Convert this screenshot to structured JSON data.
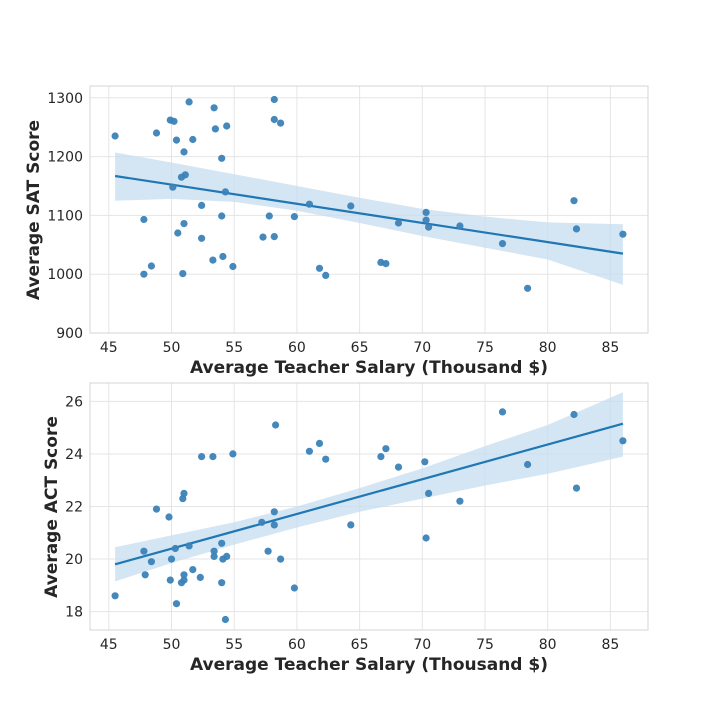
{
  "chart_data": [
    {
      "type": "scatter",
      "title": "",
      "xlabel": "Average Teacher Salary (Thousand $)",
      "ylabel": "Average SAT Score",
      "xlim": [
        43.5,
        88
      ],
      "ylim": [
        900,
        1320
      ],
      "xticks": [
        45,
        50,
        55,
        60,
        65,
        70,
        75,
        80,
        85
      ],
      "yticks": [
        900,
        1000,
        1100,
        1200,
        1300
      ],
      "grid": true,
      "regression": true,
      "colors": {
        "points": "#3b82b8",
        "line": "#1f77b4",
        "ci": "#c6dcef"
      },
      "points": [
        [
          45.5,
          1235
        ],
        [
          47.8,
          1093
        ],
        [
          47.8,
          1000
        ],
        [
          48.4,
          1014
        ],
        [
          48.8,
          1240
        ],
        [
          49.9,
          1262
        ],
        [
          50.1,
          1148
        ],
        [
          50.2,
          1260
        ],
        [
          50.4,
          1228
        ],
        [
          50.5,
          1070
        ],
        [
          50.8,
          1165
        ],
        [
          50.9,
          1001
        ],
        [
          51.0,
          1208
        ],
        [
          51.0,
          1086
        ],
        [
          51.1,
          1169
        ],
        [
          51.4,
          1293
        ],
        [
          51.7,
          1229
        ],
        [
          52.4,
          1117
        ],
        [
          52.4,
          1061
        ],
        [
          53.3,
          1024
        ],
        [
          53.4,
          1283
        ],
        [
          53.5,
          1247
        ],
        [
          54.0,
          1099
        ],
        [
          54.0,
          1197
        ],
        [
          54.1,
          1030
        ],
        [
          54.3,
          1140
        ],
        [
          54.4,
          1252
        ],
        [
          54.9,
          1013
        ],
        [
          57.3,
          1063
        ],
        [
          57.8,
          1099
        ],
        [
          58.2,
          1064
        ],
        [
          58.2,
          1297
        ],
        [
          58.2,
          1263
        ],
        [
          58.7,
          1257
        ],
        [
          59.8,
          1098
        ],
        [
          61.0,
          1119
        ],
        [
          61.8,
          1010
        ],
        [
          62.3,
          998
        ],
        [
          64.3,
          1116
        ],
        [
          66.7,
          1020
        ],
        [
          67.1,
          1018
        ],
        [
          68.1,
          1087
        ],
        [
          70.3,
          1092
        ],
        [
          70.3,
          1105
        ],
        [
          70.5,
          1080
        ],
        [
          73.0,
          1082
        ],
        [
          76.4,
          1052
        ],
        [
          78.4,
          976
        ],
        [
          82.1,
          1125
        ],
        [
          82.3,
          1077
        ],
        [
          86.0,
          1068
        ]
      ],
      "fit": {
        "x": [
          45.5,
          86.0
        ],
        "y": [
          1167,
          1035
        ]
      },
      "ci_band": {
        "x": [
          45.5,
          50,
          55,
          60,
          65,
          70,
          75,
          80,
          86.0
        ],
        "lower": [
          1125,
          1128,
          1123,
          1108,
          1087,
          1065,
          1045,
          1025,
          982
        ],
        "upper": [
          1207,
          1190,
          1170,
          1150,
          1130,
          1111,
          1098,
          1088,
          1085
        ]
      }
    },
    {
      "type": "scatter",
      "title": "",
      "xlabel": "Average Teacher Salary (Thousand $)",
      "ylabel": "Average ACT Score",
      "xlim": [
        43.5,
        88
      ],
      "ylim": [
        17.3,
        26.7
      ],
      "xticks": [
        45,
        50,
        55,
        60,
        65,
        70,
        75,
        80,
        85
      ],
      "yticks": [
        18,
        20,
        22,
        24,
        26
      ],
      "grid": true,
      "regression": true,
      "colors": {
        "points": "#3b82b8",
        "line": "#1f77b4",
        "ci": "#c6dcef"
      },
      "points": [
        [
          45.5,
          18.6
        ],
        [
          47.8,
          20.3
        ],
        [
          47.9,
          19.4
        ],
        [
          48.4,
          19.9
        ],
        [
          48.8,
          21.9
        ],
        [
          49.8,
          21.6
        ],
        [
          49.9,
          19.2
        ],
        [
          50.0,
          20.0
        ],
        [
          50.3,
          20.4
        ],
        [
          50.4,
          18.3
        ],
        [
          50.8,
          19.1
        ],
        [
          50.9,
          22.3
        ],
        [
          51.0,
          22.5
        ],
        [
          51.0,
          19.2
        ],
        [
          51.0,
          19.4
        ],
        [
          51.4,
          20.5
        ],
        [
          51.7,
          19.6
        ],
        [
          52.3,
          19.3
        ],
        [
          52.4,
          23.9
        ],
        [
          53.3,
          23.9
        ],
        [
          53.4,
          20.3
        ],
        [
          53.4,
          20.1
        ],
        [
          54.0,
          19.1
        ],
        [
          54.0,
          20.6
        ],
        [
          54.1,
          20.0
        ],
        [
          54.3,
          17.7
        ],
        [
          54.4,
          20.1
        ],
        [
          54.9,
          24.0
        ],
        [
          57.2,
          21.4
        ],
        [
          57.7,
          20.3
        ],
        [
          58.2,
          21.8
        ],
        [
          58.2,
          21.3
        ],
        [
          58.3,
          25.1
        ],
        [
          58.7,
          20.0
        ],
        [
          59.8,
          18.9
        ],
        [
          61.0,
          24.1
        ],
        [
          61.8,
          24.4
        ],
        [
          62.3,
          23.8
        ],
        [
          64.3,
          21.3
        ],
        [
          66.7,
          23.9
        ],
        [
          67.1,
          24.2
        ],
        [
          68.1,
          23.5
        ],
        [
          70.2,
          23.7
        ],
        [
          70.3,
          20.8
        ],
        [
          70.5,
          22.5
        ],
        [
          73.0,
          22.2
        ],
        [
          76.4,
          25.6
        ],
        [
          78.4,
          23.6
        ],
        [
          82.1,
          25.5
        ],
        [
          82.3,
          22.7
        ],
        [
          86.0,
          24.5
        ]
      ],
      "fit": {
        "x": [
          45.5,
          86.0
        ],
        "y": [
          19.8,
          25.15
        ]
      },
      "ci_band": {
        "x": [
          45.5,
          50,
          55,
          60,
          65,
          70,
          75,
          80,
          86.0
        ],
        "lower": [
          19.15,
          19.85,
          20.55,
          21.2,
          21.8,
          22.3,
          22.8,
          23.25,
          23.9
        ],
        "upper": [
          20.45,
          20.9,
          21.4,
          22.0,
          22.7,
          23.45,
          24.3,
          25.1,
          26.35
        ]
      }
    }
  ]
}
